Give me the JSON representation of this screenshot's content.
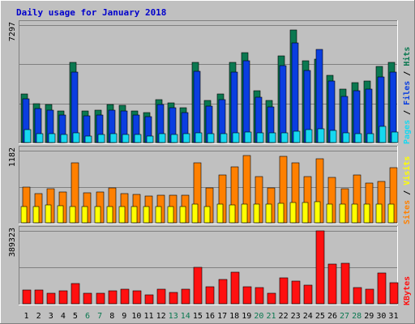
{
  "chart_data": {
    "title": "Daily usage for January 2018",
    "type": "bar",
    "categories": [
      "1",
      "2",
      "3",
      "4",
      "5",
      "6",
      "7",
      "8",
      "9",
      "10",
      "11",
      "12",
      "13",
      "14",
      "15",
      "16",
      "17",
      "18",
      "19",
      "20",
      "21",
      "22",
      "23",
      "24",
      "25",
      "26",
      "27",
      "28",
      "29",
      "30",
      "31"
    ],
    "weekend_days": [
      "6",
      "7",
      "13",
      "14",
      "20",
      "21",
      "27",
      "28"
    ],
    "colors": {
      "background": "#c0c0c0",
      "plot_bg": "#c0c0c0",
      "title": "#0000cc",
      "hits": "#0a7850",
      "files": "#0a3ee0",
      "pages": "#16d8f0",
      "visits": "#ffff00",
      "sites": "#ff8000",
      "kbytes": "#ff1010",
      "weekday_label": "#000000",
      "weekend_label": "#0a7850"
    },
    "panels": [
      {
        "id": "hits-files-pages",
        "ymax_label": "7297",
        "ymax": 7297,
        "legend": [
          {
            "text": "Hits",
            "color_key": "hits"
          },
          {
            "text": "Files",
            "color_key": "files"
          },
          {
            "text": "Pages",
            "color_key": "pages"
          }
        ],
        "separator": " / ",
        "series": [
          {
            "name": "Hits",
            "color_key": "hits",
            "values": [
              3000,
              2400,
              2350,
              1950,
              5000,
              1950,
              2000,
              2350,
              2300,
              1950,
              1850,
              2650,
              2450,
              2150,
              5000,
              2600,
              3000,
              5000,
              5600,
              3200,
              2600,
              5400,
              7000,
              5100,
              5200,
              4200,
              3300,
              3700,
              3800,
              4750,
              5000
            ]
          },
          {
            "name": "Files",
            "color_key": "files",
            "values": [
              2700,
              2100,
              2000,
              1700,
              4400,
              1650,
              1700,
              2000,
              1950,
              1700,
              1600,
              2350,
              2150,
              1850,
              4450,
              2250,
              2650,
              4400,
              5100,
              2800,
              2200,
              4800,
              6200,
              4500,
              5800,
              3800,
              2850,
              3200,
              3300,
              4100,
              4400
            ]
          },
          {
            "name": "Pages",
            "color_key": "pages",
            "values": [
              800,
              550,
              550,
              500,
              620,
              400,
              500,
              560,
              480,
              500,
              420,
              530,
              500,
              540,
              620,
              550,
              560,
              580,
              650,
              620,
              580,
              620,
              700,
              800,
              850,
              780,
              620,
              550,
              560,
              1000,
              650
            ]
          }
        ]
      },
      {
        "id": "visits-sites",
        "ymax_label": "1182",
        "ymax": 1182,
        "legend": [
          {
            "text": "Visits",
            "color_key": "visits"
          },
          {
            "text": "Sites",
            "color_key": "sites"
          }
        ],
        "separator": " / ",
        "series": [
          {
            "name": "Sites",
            "color_key": "sites",
            "values": [
              580,
              480,
              560,
              500,
              980,
              490,
              500,
              570,
              480,
              460,
              440,
              450,
              450,
              450,
              980,
              570,
              790,
              920,
              1100,
              760,
              570,
              1090,
              980,
              760,
              1050,
              740,
              560,
              790,
              650,
              680,
              900
            ]
          },
          {
            "name": "Visits",
            "color_key": "visits",
            "values": [
              260,
              270,
              290,
              280,
              260,
              260,
              260,
              260,
              260,
              260,
              260,
              260,
              260,
              260,
              300,
              260,
              300,
              290,
              300,
              300,
              300,
              320,
              330,
              330,
              350,
              300,
              300,
              300,
              300,
              300,
              300
            ]
          }
        ]
      },
      {
        "id": "kbytes",
        "ymax_label": "389323",
        "ymax": 389323,
        "legend": [
          {
            "text": "KBytes",
            "color_key": "kbytes"
          }
        ],
        "separator": "",
        "series": [
          {
            "name": "KBytes",
            "color_key": "kbytes",
            "values": [
              75000,
              72000,
              58000,
              70000,
              108000,
              55000,
              58000,
              70000,
              78000,
              70000,
              48000,
              78000,
              60000,
              80000,
              195000,
              90000,
              128000,
              170000,
              90000,
              85000,
              55000,
              138000,
              120000,
              100000,
              389323,
              210000,
              215000,
              85000,
              80000,
              165000,
              112000
            ]
          }
        ]
      }
    ]
  }
}
